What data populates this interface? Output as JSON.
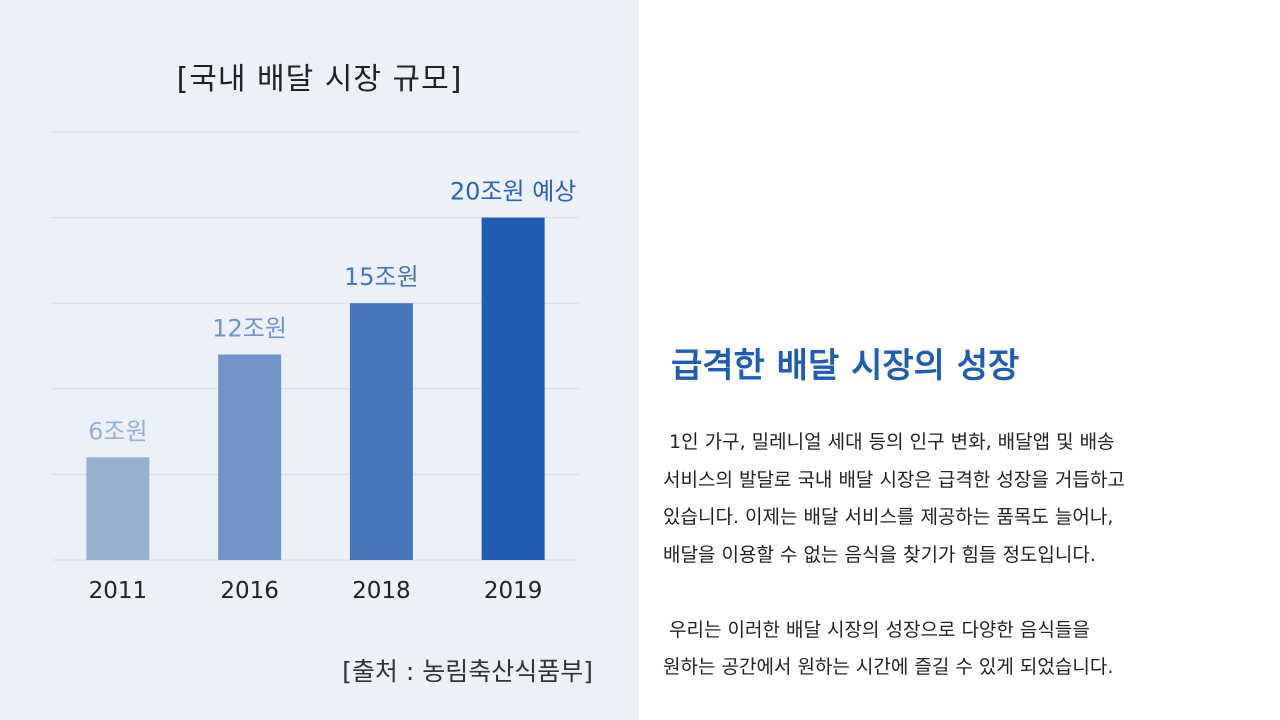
{
  "chart_data": {
    "type": "bar",
    "title": "[국내 배달 시장 규모]",
    "categories": [
      "2011",
      "2016",
      "2018",
      "2019"
    ],
    "values": [
      6,
      12,
      15,
      20
    ],
    "data_labels": [
      "6조원",
      "12조원",
      "15조원",
      "20조원 예상"
    ],
    "unit": "조원",
    "ylim": [
      0,
      25
    ],
    "grid": true,
    "bar_colors": [
      "#97b0d2",
      "#7094c8",
      "#4677bd",
      "#1f5db4"
    ],
    "label_colors": [
      "#97b0d2",
      "#7094c8",
      "#4677bd",
      "#2d63b0"
    ]
  },
  "source": "[출처 : 농림축산식품부]",
  "headline": "급격한 배달 시장의 성장",
  "paragraphs": [
    [
      " 1인 가구, 밀레니얼 세대 등의 인구 변화, 배달앱 및 배송",
      "서비스의 발달로 국내 배달 시장은 급격한 성장을 거듭하고",
      "있습니다. 이제는 배달 서비스를 제공하는 품목도 늘어나,",
      "배달을 이용할 수 없는 음식을 찾기가 힘들 정도입니다."
    ],
    [
      " 우리는 이러한 배달 시장의 성장으로 다양한 음식들을",
      "원하는 공간에서 원하는 시간에 즐길 수 있게 되었습니다."
    ]
  ]
}
